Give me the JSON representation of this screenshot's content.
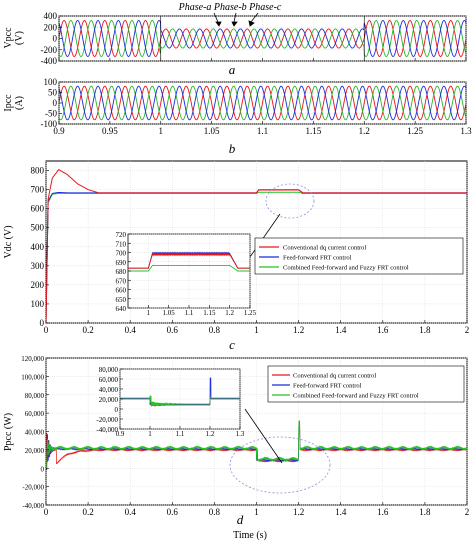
{
  "chart_data": [
    {
      "panel": "a",
      "type": "line",
      "ylabel": "Vpcc\n(V)",
      "ylim": [
        -400,
        400
      ],
      "yticks": [
        -400,
        -200,
        0,
        200,
        400
      ],
      "xlim": [
        0.9,
        1.3
      ],
      "x_tick_labels": false,
      "series": [
        {
          "name": "Phase-a",
          "color": "#e8161b",
          "amplitude_before": 320,
          "amplitude_sag": 170,
          "amplitude_after": 320,
          "frequency_hz": 50,
          "phase_deg": 0
        },
        {
          "name": "Phase-b",
          "color": "#2db52d",
          "amplitude_before": 320,
          "amplitude_sag": 170,
          "amplitude_after": 320,
          "frequency_hz": 50,
          "phase_deg": -120
        },
        {
          "name": "Phase-c",
          "color": "#1b2fd8",
          "amplitude_before": 320,
          "amplitude_sag": 170,
          "amplitude_after": 320,
          "frequency_hz": 50,
          "phase_deg": 120
        }
      ],
      "fault_interval": [
        1.0,
        1.2
      ],
      "annotation": "Phase-a Phase-b Phase-c",
      "panel_label": "a"
    },
    {
      "panel": "b",
      "type": "line",
      "ylabel": "Ipcc\n(A)",
      "ylim": [
        -100,
        100
      ],
      "yticks": [
        -100,
        -50,
        0,
        50,
        100
      ],
      "xlim": [
        0.9,
        1.3
      ],
      "xticks": [
        0.9,
        0.95,
        1,
        1.05,
        1.1,
        1.15,
        1.2,
        1.25,
        1.3
      ],
      "xtick_labels": [
        "0.9",
        "0.95",
        "1",
        "1.05",
        "1.1",
        "1.15",
        "1.2",
        "1.25",
        "1.3"
      ],
      "series": [
        {
          "name": "Phase-a",
          "color": "#e8161b",
          "amplitude": 80,
          "frequency_hz": 50,
          "phase_deg": 0
        },
        {
          "name": "Phase-b",
          "color": "#2db52d",
          "amplitude": 80,
          "frequency_hz": 50,
          "phase_deg": -120
        },
        {
          "name": "Phase-c",
          "color": "#1b2fd8",
          "amplitude": 80,
          "frequency_hz": 50,
          "phase_deg": 120
        }
      ],
      "panel_label": "b"
    },
    {
      "panel": "c",
      "type": "line",
      "ylabel": "Vdc (V)",
      "ylim": [
        0,
        850
      ],
      "yticks": [
        0,
        100,
        200,
        300,
        400,
        500,
        600,
        700,
        800
      ],
      "xlim": [
        0,
        2
      ],
      "xticks": [
        0,
        0.2,
        0.4,
        0.6,
        0.8,
        1,
        1.2,
        1.4,
        1.6,
        1.8,
        2
      ],
      "xtick_labels": [
        "0",
        "0.2",
        "0.4",
        "0.6",
        "0.8",
        "1",
        "1.2",
        "1.4",
        "1.6",
        "1.8",
        "2"
      ],
      "series": [
        {
          "name": "Conventional dq current control",
          "color": "#e8161b",
          "x": [
            0,
            0.01,
            0.03,
            0.06,
            0.1,
            0.15,
            0.2,
            0.25,
            1.0,
            1.01,
            1.2,
            1.22,
            2.0
          ],
          "y": [
            0,
            650,
            760,
            805,
            780,
            730,
            700,
            683,
            683,
            698,
            698,
            683,
            683
          ]
        },
        {
          "name": "Feed-forward FRT control",
          "color": "#1b2fd8",
          "x": [
            0,
            0.01,
            0.03,
            0.06,
            0.1,
            0.2,
            1.0,
            1.01,
            1.2,
            1.22,
            2.0
          ],
          "y": [
            0,
            640,
            680,
            685,
            683,
            683,
            683,
            699,
            699,
            683,
            683
          ]
        },
        {
          "name": "Combined Feed-forward and Fuzzy FRT control",
          "color": "#22c322",
          "x": [
            0,
            0.01,
            0.03,
            0.06,
            0.1,
            0.2,
            1.0,
            1.01,
            1.2,
            1.22,
            2.0
          ],
          "y": [
            0,
            630,
            676,
            680,
            680,
            680,
            680,
            686,
            686,
            680,
            680
          ]
        }
      ],
      "inset": {
        "xlim": [
          0.95,
          1.25
        ],
        "ylim": [
          640,
          720
        ],
        "yticks": [
          640,
          650,
          660,
          670,
          680,
          690,
          700,
          710,
          720
        ],
        "xticks": [
          1,
          1.05,
          1.1,
          1.15,
          1.2,
          1.25
        ],
        "xtick_labels": [
          "1",
          "1.05",
          "1.1",
          "1.15",
          "1.2",
          "1.25"
        ]
      },
      "legend": [
        "Conventional dq current control",
        "Feed-forward FRT control",
        "Combined Feed-forward and Fuzzy FRT control"
      ],
      "legend_position": "inset right",
      "panel_label": "c"
    },
    {
      "panel": "d",
      "type": "line",
      "ylabel": "Ppcc (W)",
      "xlabel": "Time (s)",
      "ylim": [
        -40000,
        120000
      ],
      "yticks": [
        -40000,
        -20000,
        0,
        20000,
        40000,
        60000,
        80000,
        100000,
        120000
      ],
      "ytick_labels": [
        "-40,000",
        "-20,000",
        "0",
        "20,000",
        "40,000",
        "60,000",
        "80,000",
        "100,000",
        "120,000"
      ],
      "xlim": [
        0,
        2
      ],
      "xticks": [
        0,
        0.2,
        0.4,
        0.6,
        0.8,
        1,
        1.2,
        1.4,
        1.6,
        1.8,
        2
      ],
      "xtick_labels": [
        "0",
        "0.2",
        "0.4",
        "0.6",
        "0.8",
        "1",
        "1.2",
        "1.4",
        "1.6",
        "1.8",
        "2"
      ],
      "series": [
        {
          "name": "Conventional dq current control",
          "color": "#e8161b",
          "steady": 20000,
          "fault": 8000
        },
        {
          "name": "Feed-forward FRT control",
          "color": "#1b2fd8",
          "steady": 21000,
          "fault": 9000
        },
        {
          "name": "Combined Feed-forward and Fuzzy FRT control",
          "color": "#22c322",
          "steady": 22000,
          "fault": 10000
        }
      ],
      "inset": {
        "xlim": [
          0.9,
          1.3
        ],
        "ylim": [
          -40000,
          80000
        ],
        "yticks": [
          -40000,
          -20000,
          0,
          20000,
          40000,
          60000,
          80000
        ],
        "ytick_labels": [
          "-40,000",
          "-20,000",
          "0",
          "20,000",
          "40,000",
          "60,000",
          "80,000"
        ],
        "xticks": [
          0.9,
          1,
          1.1,
          1.2,
          1.3
        ],
        "xtick_labels": [
          "0.9",
          "1",
          "1.1",
          "1.2",
          "1.3"
        ]
      },
      "legend": [
        "Conventional dq current control",
        "Feed-forward FRT control",
        "Combined Feed-forward and Fuzzy FRT control"
      ],
      "legend_position": "top-right",
      "panel_label": "d"
    }
  ]
}
